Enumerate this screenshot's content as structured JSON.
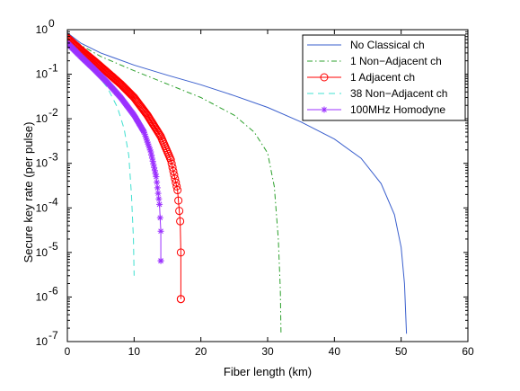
{
  "chart_data": {
    "type": "line",
    "title": "",
    "xlabel": "Fiber length (km)",
    "ylabel": "Secure key rate (per pulse)",
    "xlim": [
      0,
      60
    ],
    "ylim": [
      1e-07,
      1
    ],
    "yscale": "log",
    "grid": false,
    "legend_position": "top-right",
    "x_ticks": [
      0,
      10,
      20,
      30,
      40,
      50,
      60
    ],
    "y_ticks": [
      {
        "value": 1e-07,
        "base": "10",
        "exp": "-7"
      },
      {
        "value": 1e-06,
        "base": "10",
        "exp": "-6"
      },
      {
        "value": 1e-05,
        "base": "10",
        "exp": "-5"
      },
      {
        "value": 0.0001,
        "base": "10",
        "exp": "-4"
      },
      {
        "value": 0.001,
        "base": "10",
        "exp": "-3"
      },
      {
        "value": 0.01,
        "base": "10",
        "exp": "-2"
      },
      {
        "value": 0.1,
        "base": "10",
        "exp": "-1"
      },
      {
        "value": 1,
        "base": "10",
        "exp": "0"
      }
    ],
    "series": [
      {
        "name": "No Classical ch",
        "color": "#3a5fcd",
        "style": "solid",
        "marker": "none",
        "points": [
          [
            0,
            0.85
          ],
          [
            2,
            0.5
          ],
          [
            5,
            0.3
          ],
          [
            10,
            0.16
          ],
          [
            15,
            0.095
          ],
          [
            20,
            0.058
          ],
          [
            25,
            0.033
          ],
          [
            30,
            0.018
          ],
          [
            35,
            0.0085
          ],
          [
            40,
            0.0035
          ],
          [
            44,
            0.0013
          ],
          [
            47,
            0.00035
          ],
          [
            49,
            7e-05
          ],
          [
            50,
            1.3e-05
          ],
          [
            50.5,
            2e-06
          ],
          [
            50.8,
            1.5e-07
          ]
        ]
      },
      {
        "name": "1 Non−Adjacent ch",
        "color": "#2ca02c",
        "style": "dashdot",
        "marker": "none",
        "points": [
          [
            0,
            0.8
          ],
          [
            2,
            0.45
          ],
          [
            5,
            0.25
          ],
          [
            10,
            0.12
          ],
          [
            15,
            0.06
          ],
          [
            20,
            0.03
          ],
          [
            25,
            0.012
          ],
          [
            28,
            0.005
          ],
          [
            30,
            0.0017
          ],
          [
            31,
            0.0003
          ],
          [
            31.6,
            2e-05
          ],
          [
            31.9,
            1.5e-06
          ],
          [
            32,
            1.6e-07
          ]
        ]
      },
      {
        "name": "1 Adjacent ch",
        "color": "#ff0000",
        "style": "solid",
        "marker": "circle",
        "points": [
          [
            0,
            0.65
          ],
          [
            2,
            0.35
          ],
          [
            4,
            0.2
          ],
          [
            6,
            0.11
          ],
          [
            8,
            0.06
          ],
          [
            10,
            0.03
          ],
          [
            12,
            0.012
          ],
          [
            14,
            0.004
          ],
          [
            15.5,
            0.0012
          ],
          [
            16.5,
            0.00025
          ],
          [
            16.9,
            5e-05
          ],
          [
            17,
            1e-05
          ],
          [
            17,
            9e-07
          ]
        ]
      },
      {
        "name": "38 Non−Adjacent ch",
        "color": "#40e0d0",
        "style": "dashed",
        "marker": "none",
        "points": [
          [
            0,
            0.55
          ],
          [
            2,
            0.25
          ],
          [
            4,
            0.12
          ],
          [
            6,
            0.05
          ],
          [
            7.5,
            0.018
          ],
          [
            8.5,
            0.006
          ],
          [
            9.2,
            0.0015
          ],
          [
            9.6,
            0.0002
          ],
          [
            9.9,
            2e-05
          ],
          [
            10,
            3e-06
          ]
        ]
      },
      {
        "name": "100MHz Homodyne",
        "color": "#9b30ff",
        "style": "solid",
        "marker": "star",
        "points": [
          [
            0,
            0.5
          ],
          [
            2,
            0.25
          ],
          [
            4,
            0.13
          ],
          [
            6,
            0.065
          ],
          [
            8,
            0.03
          ],
          [
            10,
            0.012
          ],
          [
            11.5,
            0.005
          ],
          [
            12.5,
            0.0018
          ],
          [
            13.3,
            0.0005
          ],
          [
            13.8,
            0.00012
          ],
          [
            14,
            3e-05
          ],
          [
            14,
            6.5e-06
          ]
        ]
      }
    ]
  }
}
